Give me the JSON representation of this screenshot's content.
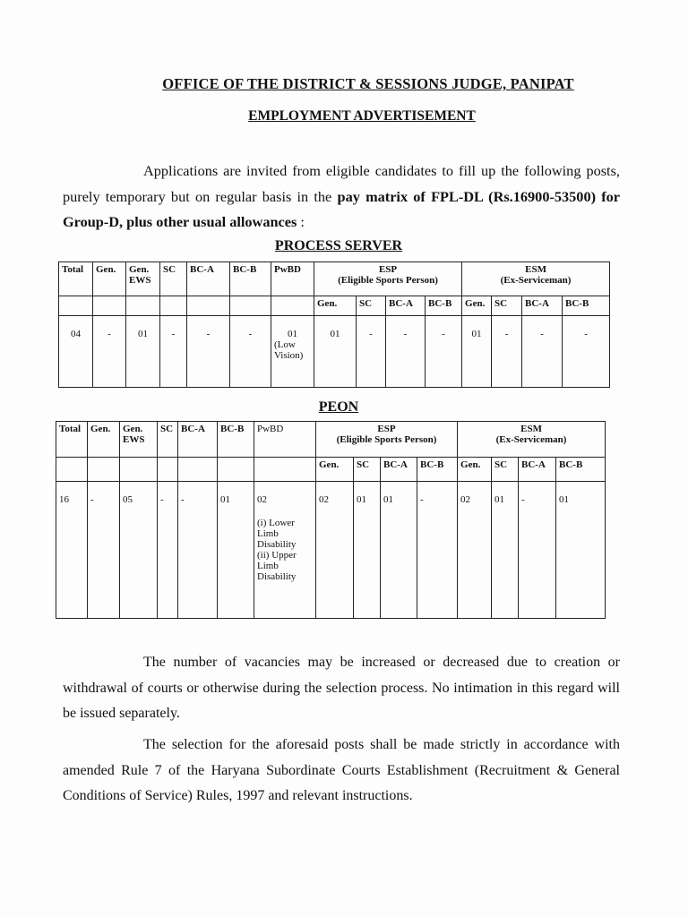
{
  "header": {
    "office": "OFFICE OF THE DISTRICT & SESSIONS JUDGE, PANIPAT",
    "title": "EMPLOYMENT ADVERTISEMENT"
  },
  "intro": {
    "text_start": "Applications are invited from eligible candidates to fill up the following posts, purely temporary but on regular basis in the ",
    "text_bold": "pay matrix of FPL-DL (Rs.16900-53500) for Group-D, plus other usual allowances",
    "text_end": " :"
  },
  "columns": {
    "total": "Total",
    "gen": "Gen.",
    "gen_ews": "Gen. EWS",
    "sc": "SC",
    "bca": "BC-A",
    "bcb": "BC-B",
    "pwbd": "PwBD",
    "esp": "ESP",
    "esp_full": "(Eligible Sports Person)",
    "esm": "ESM",
    "esm_full": "(Ex-Serviceman)",
    "sub": [
      "Gen.",
      "SC",
      "BC-A",
      "BC-B"
    ]
  },
  "process_server": {
    "heading": "PROCESS SERVER",
    "values": [
      "04",
      "-",
      "01",
      "-",
      "-",
      "-"
    ],
    "pwbd": "01",
    "pwbd_note": "(Low Vision)",
    "esp": [
      "01",
      "-",
      "-",
      "-"
    ],
    "esm": [
      "01",
      "-",
      "-",
      "-"
    ]
  },
  "peon": {
    "heading": "PEON",
    "values": [
      "16",
      "-",
      "05",
      "-",
      "-",
      "01"
    ],
    "pwbd": "02",
    "pwbd_note1": "(i) Lower Limb Disability",
    "pwbd_note2": "(ii) Upper Limb Disability",
    "esp": [
      "02",
      "01",
      "01",
      "-"
    ],
    "esm": [
      "02",
      "01",
      "-",
      "01"
    ]
  },
  "notes": [
    "The number of vacancies may be increased or decreased due to creation or withdrawal of courts or otherwise during the selection process. No intimation in this regard will be issued separately.",
    "The selection for the aforesaid posts shall be made strictly in accordance with amended Rule 7 of the Haryana Subordinate Courts Establishment (Recruitment & General Conditions of Service) Rules, 1997 and relevant instructions."
  ]
}
